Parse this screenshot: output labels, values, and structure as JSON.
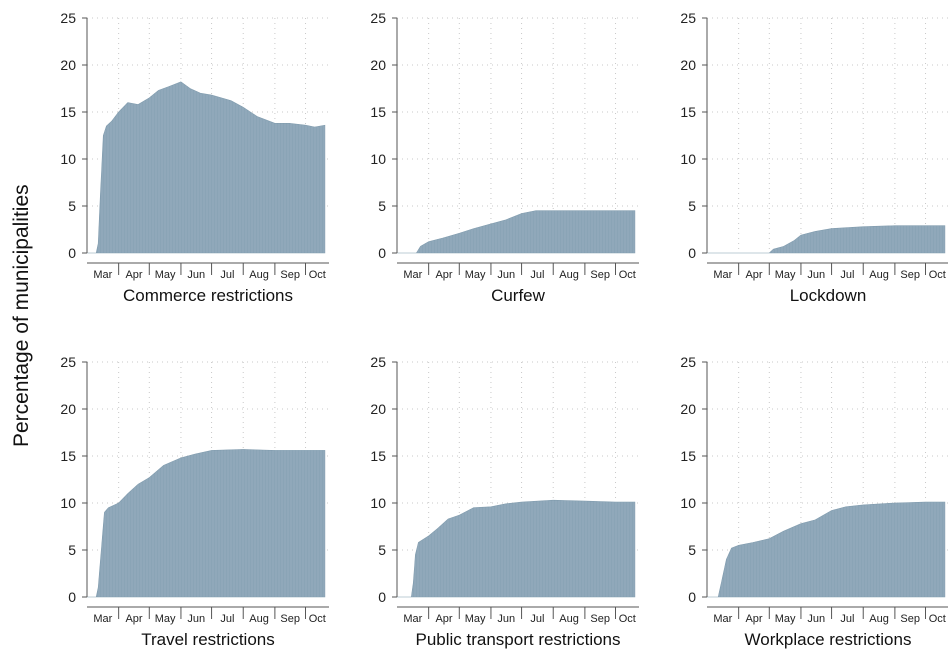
{
  "y_axis_label": "Percentage of municipalities",
  "style": {
    "bar_color": "#8aa4b6",
    "axis_color": "#555555",
    "grid_color": "#c9c9c9"
  },
  "chart_data": [
    {
      "type": "area",
      "title": "Commerce restrictions",
      "x_ticks": [
        "Mar",
        "Apr",
        "May",
        "Jun",
        "Jul",
        "Aug",
        "Sep",
        "Oct"
      ],
      "ylim": [
        0,
        25
      ],
      "y_ticks": [
        0,
        5,
        10,
        15,
        20,
        25
      ],
      "grid": true,
      "x": [
        "2020-03-01",
        "2020-03-10",
        "2020-03-12",
        "2020-03-14",
        "2020-03-17",
        "2020-03-20",
        "2020-03-25",
        "2020-04-01",
        "2020-04-10",
        "2020-04-20",
        "2020-05-01",
        "2020-05-10",
        "2020-05-20",
        "2020-06-01",
        "2020-06-10",
        "2020-06-20",
        "2020-07-01",
        "2020-07-20",
        "2020-08-01",
        "2020-08-15",
        "2020-09-01",
        "2020-09-15",
        "2020-10-01",
        "2020-10-10",
        "2020-10-20"
      ],
      "y": [
        0,
        0,
        1,
        6,
        12.5,
        13.5,
        14,
        15,
        16,
        15.8,
        16.5,
        17.3,
        17.7,
        18.2,
        17.5,
        17,
        16.8,
        16.2,
        15.5,
        14.5,
        13.8,
        13.8,
        13.6,
        13.4,
        13.6
      ]
    },
    {
      "type": "area",
      "title": "Curfew",
      "x_ticks": [
        "Mar",
        "Apr",
        "May",
        "Jun",
        "Jul",
        "Aug",
        "Sep",
        "Oct"
      ],
      "ylim": [
        0,
        25
      ],
      "y_ticks": [
        0,
        5,
        10,
        15,
        20,
        25
      ],
      "grid": true,
      "x": [
        "2020-03-01",
        "2020-03-20",
        "2020-03-24",
        "2020-04-01",
        "2020-04-15",
        "2020-05-01",
        "2020-05-15",
        "2020-06-01",
        "2020-06-15",
        "2020-07-01",
        "2020-07-15",
        "2020-08-01",
        "2020-09-01",
        "2020-10-01",
        "2020-10-20"
      ],
      "y": [
        0,
        0,
        0.7,
        1.2,
        1.6,
        2.1,
        2.6,
        3.1,
        3.5,
        4.2,
        4.5,
        4.5,
        4.5,
        4.5,
        4.5
      ]
    },
    {
      "type": "area",
      "title": "Lockdown",
      "x_ticks": [
        "Mar",
        "Apr",
        "May",
        "Jun",
        "Jul",
        "Aug",
        "Sep",
        "Oct"
      ],
      "ylim": [
        0,
        25
      ],
      "y_ticks": [
        0,
        5,
        10,
        15,
        20,
        25
      ],
      "grid": true,
      "x": [
        "2020-03-01",
        "2020-05-01",
        "2020-05-05",
        "2020-05-15",
        "2020-05-25",
        "2020-06-01",
        "2020-06-15",
        "2020-07-01",
        "2020-08-01",
        "2020-09-01",
        "2020-10-01",
        "2020-10-20"
      ],
      "y": [
        0,
        0,
        0.4,
        0.7,
        1.3,
        1.9,
        2.3,
        2.6,
        2.8,
        2.9,
        2.9,
        2.9
      ]
    },
    {
      "type": "area",
      "title": "Travel restrictions",
      "x_ticks": [
        "Mar",
        "Apr",
        "May",
        "Jun",
        "Jul",
        "Aug",
        "Sep",
        "Oct"
      ],
      "ylim": [
        0,
        25
      ],
      "y_ticks": [
        0,
        5,
        10,
        15,
        20,
        25
      ],
      "grid": true,
      "x": [
        "2020-03-01",
        "2020-03-10",
        "2020-03-12",
        "2020-03-15",
        "2020-03-18",
        "2020-03-22",
        "2020-04-01",
        "2020-04-10",
        "2020-04-20",
        "2020-05-01",
        "2020-05-15",
        "2020-06-01",
        "2020-06-15",
        "2020-07-01",
        "2020-08-01",
        "2020-09-01",
        "2020-10-01",
        "2020-10-20"
      ],
      "y": [
        0,
        0,
        1,
        5,
        9,
        9.5,
        10,
        11,
        12,
        12.7,
        14,
        14.8,
        15.2,
        15.6,
        15.7,
        15.6,
        15.6,
        15.6
      ]
    },
    {
      "type": "area",
      "title": "Public transport restrictions",
      "x_ticks": [
        "Mar",
        "Apr",
        "May",
        "Jun",
        "Jul",
        "Aug",
        "Sep",
        "Oct"
      ],
      "ylim": [
        0,
        25
      ],
      "y_ticks": [
        0,
        5,
        10,
        15,
        20,
        25
      ],
      "grid": true,
      "x": [
        "2020-03-01",
        "2020-03-15",
        "2020-03-17",
        "2020-03-19",
        "2020-03-22",
        "2020-04-01",
        "2020-04-10",
        "2020-04-20",
        "2020-05-01",
        "2020-05-15",
        "2020-06-01",
        "2020-06-15",
        "2020-07-01",
        "2020-08-01",
        "2020-09-01",
        "2020-10-01",
        "2020-10-20"
      ],
      "y": [
        0,
        0,
        1.5,
        4.5,
        5.8,
        6.5,
        7.3,
        8.3,
        8.7,
        9.5,
        9.6,
        9.9,
        10.1,
        10.3,
        10.2,
        10.1,
        10.1
      ]
    },
    {
      "type": "area",
      "title": "Workplace restrictions",
      "x_ticks": [
        "Mar",
        "Apr",
        "May",
        "Jun",
        "Jul",
        "Aug",
        "Sep",
        "Oct"
      ],
      "ylim": [
        0,
        25
      ],
      "y_ticks": [
        0,
        5,
        10,
        15,
        20,
        25
      ],
      "grid": true,
      "x": [
        "2020-03-01",
        "2020-03-12",
        "2020-03-15",
        "2020-03-20",
        "2020-03-25",
        "2020-04-01",
        "2020-04-15",
        "2020-05-01",
        "2020-05-15",
        "2020-06-01",
        "2020-06-15",
        "2020-07-01",
        "2020-07-15",
        "2020-08-01",
        "2020-09-01",
        "2020-10-01",
        "2020-10-20"
      ],
      "y": [
        0,
        0,
        1.5,
        4,
        5.2,
        5.5,
        5.8,
        6.2,
        7,
        7.8,
        8.2,
        9.2,
        9.6,
        9.8,
        10,
        10.1,
        10.1
      ]
    }
  ]
}
